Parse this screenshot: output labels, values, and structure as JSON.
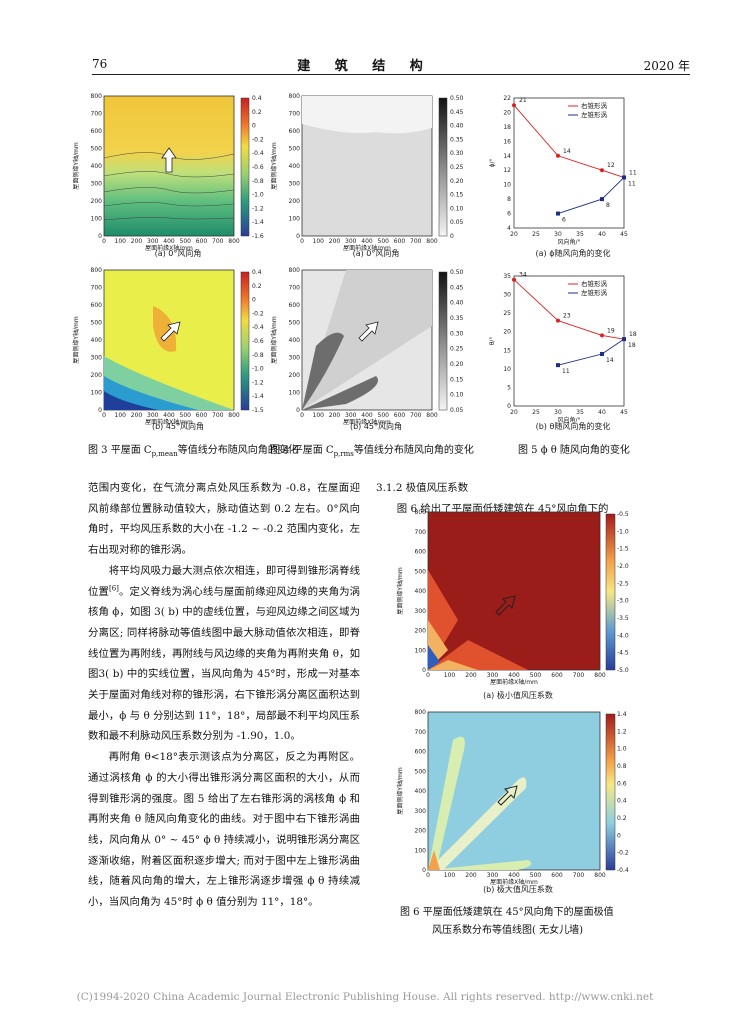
{
  "header": {
    "page_number": "76",
    "journal": "建 筑 结 构",
    "year": "2020 年"
  },
  "figures": {
    "fig3": {
      "panel_a": "(a) 0°风向角",
      "panel_b": "(b) 45°风向角",
      "xlabel": "屋面前缘X轴/mm",
      "ylabel": "屋面侧缘Y轴/mm",
      "ticks": [
        "0",
        "100",
        "200",
        "300",
        "400",
        "500",
        "600",
        "700",
        "800"
      ],
      "colorbar_top": [
        "0.4",
        "0.2",
        "0",
        "-0.2",
        "-0.4",
        "-0.6",
        "-0.8",
        "-1.0",
        "-1.2",
        "-1.4",
        "-1.6"
      ],
      "colorbar_bottom": [
        "0.4",
        "0.2",
        "0",
        "-0.2",
        "-0.4",
        "-0.6",
        "-0.8",
        "-1.0",
        "-1.2",
        "-1.4",
        "-1.5"
      ]
    },
    "fig4": {
      "panel_a": "(a) 0°风向角",
      "panel_b": "(b) 45°风向角",
      "xlabel": "屋面前缘X轴/mm",
      "ylabel": "屋面侧缘Y轴/mm",
      "ticks": [
        "0",
        "100",
        "200",
        "300",
        "400",
        "500",
        "600",
        "700",
        "800"
      ],
      "colorbar": [
        "0.50",
        "0.45",
        "0.40",
        "0.35",
        "0.30",
        "0.25",
        "0.20",
        "0.15",
        "0.10",
        "0.05",
        "0"
      ],
      "colorbar_b": [
        "0.50",
        "0.45",
        "0.40",
        "0.35",
        "0.30",
        "0.25",
        "0.20",
        "0.15",
        "0.10",
        "0.05"
      ]
    },
    "fig5": {
      "panel_a": "(a) ϕ随风向角的变化",
      "panel_b": "(b) θ随风向角的变化",
      "xlabel": "风向角/°",
      "ylabel_a": "ϕ/°",
      "ylabel_b": "θ/°",
      "legend_right": "右锥形涡",
      "legend_left": "左锥形涡"
    },
    "fig6": {
      "panel_a": "(a) 极小值风压系数",
      "panel_b": "(b) 极大值风压系数",
      "xlabel": "屋面前缘X轴/mm",
      "ylabel": "屋面侧缘Y轴/mm",
      "ticks": [
        "0",
        "100",
        "200",
        "300",
        "400",
        "500",
        "600",
        "700",
        "800"
      ],
      "colorbar_a": [
        "-0.5",
        "-1.0",
        "-1.5",
        "-2.0",
        "-2.5",
        "-3.0",
        "-3.5",
        "-4.0",
        "-4.5",
        "-5.0"
      ],
      "colorbar_b": [
        "1.4",
        "1.2",
        "1.0",
        "0.8",
        "0.6",
        "0.4",
        "0.2",
        "0",
        "-0.2",
        "-0.4"
      ]
    }
  },
  "chart_data": [
    {
      "type": "line",
      "title": "(a) ϕ随风向角的变化",
      "xlabel": "风向角/°",
      "ylabel": "ϕ/°",
      "xlim": [
        20,
        45
      ],
      "ylim": [
        4,
        22
      ],
      "xticks": [
        20,
        25,
        30,
        35,
        40,
        45
      ],
      "yticks": [
        4,
        6,
        8,
        10,
        12,
        14,
        16,
        18,
        20,
        22
      ],
      "series": [
        {
          "name": "右锥形涡",
          "x": [
            20,
            30,
            40,
            45
          ],
          "values": [
            21,
            14,
            12,
            11
          ]
        },
        {
          "name": "左锥形涡",
          "x": [
            30,
            40,
            45
          ],
          "values": [
            6,
            8,
            11
          ]
        }
      ]
    },
    {
      "type": "line",
      "title": "(b) θ随风向角的变化",
      "xlabel": "风向角/°",
      "ylabel": "θ/°",
      "xlim": [
        20,
        45
      ],
      "ylim": [
        0,
        35
      ],
      "xticks": [
        20,
        25,
        30,
        35,
        40,
        45
      ],
      "yticks": [
        0,
        5,
        10,
        15,
        20,
        25,
        30,
        35
      ],
      "series": [
        {
          "name": "右锥形涡",
          "x": [
            20,
            30,
            40,
            45
          ],
          "values": [
            34,
            23,
            19,
            18
          ]
        },
        {
          "name": "左锥形涡",
          "x": [
            30,
            40,
            45
          ],
          "values": [
            11,
            14,
            18
          ]
        }
      ]
    }
  ],
  "captions": {
    "fig3": "图 3   平屋面 C",
    "fig3_sub": "p,mean",
    "fig3_tail": "等值线分布随风向角的变化",
    "fig4": "图 4   平屋面 C",
    "fig4_sub": "p,rms",
    "fig4_tail": "等值线分布随风向角的变化",
    "fig5": "图 5   ϕ θ 随风向角的变化",
    "fig6_line1": "图 6   平屋面低矮建筑在 45°风向角下的屋面极值",
    "fig6_line2": "风压系数分布等值线图( 无女儿墙)"
  },
  "body_left": {
    "p1": "范围内变化，在气流分离点处风压系数为 -0.8，在屋面迎风前缘部位置脉动值较大，脉动值达到 0.2 左右。0°风向角时，平均风压系数的大小在 -1.2 ~ -0.2 范围内变化，左右出现对称的锥形涡。",
    "p2a": "将平均风吸力最大测点依次相连，即可得到锥形涡脊线位置",
    "p2_ref": "[6]",
    "p2b": "。定义脊线为涡心线与屋面前缘迎风边缘的夹角为涡核角 ϕ，如图 3( b) 中的虚线位置，与迎风边缘之间区域为分离区; 同样将脉动等值线图中最大脉动值依次相连，即脊线位置为再附线，再附线与风边缘的夹角为再附夹角 θ，如图3( b) 中的实线位置，当风向角为 45°时，形成一对基本关于屋面对角线对称的锥形涡，右下锥形涡分离区面积达到最小，ϕ 与 θ 分别达到 11°，18°，局部最不利平均风压系数和最不利脉动风压系数分别为 -1.90，1.0。",
    "p3": "再附角 θ<18°表示测该点为分离区，反之为再附区。通过涡核角 ϕ 的大小得出锥形涡分离区面积的大小，从而得到锥形涡的强度。图 5 给出了左右锥形涡的涡核角 ϕ 和再附夹角 θ 随风向角变化的曲线。对于图中右下锥形涡曲线，风向角从 0° ~ 45° ϕ θ 持续减小，说明锥形涡分离区逐渐收缩，附着区面积逐步增大; 而对于图中左上锥形涡曲线，随着风向角的增大，左上锥形涡逐步增强 ϕ θ 持续减小，当风向角为 45°时 ϕ θ 值分别为 11°，18°。"
  },
  "body_right": {
    "heading": "3.1.2  极值风压系数",
    "p1": "图 6 给出了平屋面低矮建筑在 45°风向角下的"
  },
  "footer": "(C)1994-2020 China Academic Journal Electronic Publishing House. All rights reserved.    http://www.cnki.net"
}
